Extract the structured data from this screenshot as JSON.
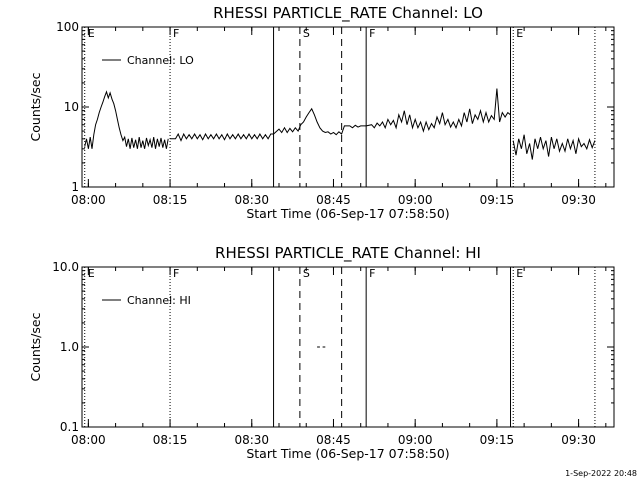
{
  "chart_data": [
    {
      "type": "line",
      "title": "RHESSI PARTICLE_RATE Channel: LO",
      "xlabel": "Start Time (06-Sep-17 07:58:50)",
      "ylabel": "Counts/sec",
      "yscale": "log",
      "ylim": [
        1,
        100
      ],
      "y_ticks": [
        "1",
        "10",
        "100"
      ],
      "xlim": [
        "07:58:50",
        "09:36:30"
      ],
      "x_ticks": [
        "08:00",
        "08:15",
        "08:30",
        "08:45",
        "09:00",
        "09:15",
        "09:30"
      ],
      "legend": {
        "position": "top-left",
        "entries": [
          "Channel: LO"
        ]
      },
      "grid": false,
      "markers": [
        {
          "time": "07:59:20",
          "label": "E",
          "style": "dotted"
        },
        {
          "time": "08:15:00",
          "label": "F",
          "style": "dotted"
        },
        {
          "time": "08:34:00",
          "label": "",
          "style": "solid"
        },
        {
          "time": "08:38:50",
          "label": "S",
          "style": "dashed"
        },
        {
          "time": "08:46:30",
          "label": "",
          "style": "dashed"
        },
        {
          "time": "08:51:00",
          "label": "F",
          "style": "solid"
        },
        {
          "time": "09:17:30",
          "label": "",
          "style": "solid"
        },
        {
          "time": "09:18:00",
          "label": "E",
          "style": "dotted"
        },
        {
          "time": "09:33:00",
          "label": "",
          "style": "dotted"
        }
      ],
      "series": [
        {
          "name": "Channel: LO",
          "segments": [
            {
              "x": [
                "07:59:20",
                "07:59:40",
                "08:00:00",
                "08:00:20",
                "08:00:40",
                "08:01:00",
                "08:01:20",
                "08:01:40",
                "08:02:00",
                "08:02:20",
                "08:02:40",
                "08:03:00",
                "08:03:20",
                "08:03:40",
                "08:04:00",
                "08:04:20",
                "08:04:40",
                "08:05:00",
                "08:05:20",
                "08:05:40",
                "08:06:00",
                "08:06:20",
                "08:06:40",
                "08:07:00",
                "08:07:20",
                "08:07:40",
                "08:08:00",
                "08:08:20",
                "08:08:40",
                "08:09:00",
                "08:09:20",
                "08:09:40",
                "08:10:00",
                "08:10:20",
                "08:10:40",
                "08:11:00",
                "08:11:20",
                "08:11:40",
                "08:12:00",
                "08:12:20",
                "08:12:40",
                "08:13:00",
                "08:13:20",
                "08:13:40",
                "08:14:00",
                "08:14:20",
                "08:14:40"
              ],
              "y": [
                3.2,
                4.0,
                3.0,
                4.2,
                3.0,
                4.5,
                6.0,
                7.0,
                8.5,
                10.0,
                11.5,
                13.5,
                15.5,
                13.0,
                15.0,
                12.5,
                11.0,
                9.0,
                7.0,
                5.5,
                4.5,
                3.8,
                4.2,
                3.2,
                4.0,
                3.0,
                4.1,
                3.1,
                3.9,
                3.0,
                4.2,
                3.1,
                3.8,
                3.0,
                4.1,
                3.3,
                3.9,
                3.1,
                4.2,
                3.0,
                4.0,
                3.2,
                4.1,
                3.1,
                3.9,
                3.0,
                4.0
              ]
            },
            {
              "x": [
                "08:15:00",
                "08:16:00",
                "08:16:30",
                "08:17:00",
                "08:17:30",
                "08:18:00",
                "08:18:30",
                "08:19:00",
                "08:19:30",
                "08:20:00",
                "08:20:30",
                "08:21:00",
                "08:21:30",
                "08:22:00",
                "08:22:30",
                "08:23:00",
                "08:23:30",
                "08:24:00",
                "08:24:30",
                "08:25:00",
                "08:25:30",
                "08:26:00",
                "08:26:30",
                "08:27:00",
                "08:27:30",
                "08:28:00",
                "08:28:30",
                "08:29:00",
                "08:29:30",
                "08:30:00",
                "08:30:30",
                "08:31:00",
                "08:31:30",
                "08:32:00",
                "08:32:30",
                "08:33:00",
                "08:33:30",
                "08:34:00"
              ],
              "y": [
                4.0,
                4.0,
                4.6,
                3.8,
                4.6,
                4.0,
                4.5,
                4.0,
                4.6,
                4.0,
                4.5,
                3.9,
                4.6,
                4.0,
                4.5,
                4.0,
                4.6,
                4.0,
                4.5,
                3.9,
                4.6,
                4.0,
                4.5,
                4.0,
                4.6,
                4.0,
                4.5,
                4.0,
                4.6,
                4.0,
                4.5,
                4.0,
                4.6,
                4.0,
                4.5,
                4.0,
                4.6,
                4.6
              ]
            },
            {
              "x": [
                "08:34:00",
                "08:35:00",
                "08:35:30",
                "08:36:00",
                "08:36:30",
                "08:37:00",
                "08:37:30",
                "08:38:00",
                "08:38:30",
                "08:39:00",
                "08:39:30",
                "08:40:00",
                "08:40:30",
                "08:41:00",
                "08:41:30",
                "08:42:00",
                "08:42:30",
                "08:43:00",
                "08:43:30",
                "08:44:00",
                "08:44:30",
                "08:45:00",
                "08:45:30",
                "08:46:00",
                "08:46:30",
                "08:47:00",
                "08:48:00",
                "08:48:30",
                "08:49:00",
                "08:49:30",
                "08:50:00",
                "08:51:00"
              ],
              "y": [
                4.6,
                5.3,
                4.8,
                5.5,
                4.8,
                5.4,
                4.9,
                5.5,
                5.0,
                6.0,
                6.5,
                7.5,
                8.5,
                9.5,
                8.0,
                6.5,
                5.5,
                5.0,
                4.8,
                4.9,
                4.6,
                4.8,
                4.5,
                4.9,
                4.6,
                5.8,
                5.8,
                5.5,
                5.9,
                5.6,
                5.8,
                5.8
              ]
            },
            {
              "x": [
                "08:51:00",
                "08:52:00",
                "08:52:30",
                "08:53:00",
                "08:53:30",
                "08:54:00",
                "08:54:30",
                "08:55:00",
                "08:55:30",
                "08:56:00",
                "08:56:30",
                "08:57:00",
                "08:57:30",
                "08:58:00",
                "08:58:30",
                "08:59:00",
                "08:59:30",
                "09:00:00",
                "09:00:30",
                "09:01:00",
                "09:01:30",
                "09:02:00",
                "09:02:30",
                "09:03:00",
                "09:03:30",
                "09:04:00",
                "09:04:30",
                "09:05:00",
                "09:05:30",
                "09:06:00",
                "09:06:30",
                "09:07:00",
                "09:07:30",
                "09:08:00",
                "09:08:30",
                "09:09:00",
                "09:09:30",
                "09:10:00",
                "09:10:30",
                "09:11:00",
                "09:11:30",
                "09:12:00",
                "09:12:30",
                "09:13:00",
                "09:13:30",
                "09:14:00",
                "09:14:30",
                "09:15:00",
                "09:15:30",
                "09:16:00",
                "09:16:30",
                "09:17:00",
                "09:17:30"
              ],
              "y": [
                5.8,
                6.0,
                5.5,
                6.3,
                5.8,
                6.5,
                5.5,
                7.0,
                6.0,
                6.8,
                5.5,
                8.0,
                6.5,
                9.0,
                6.0,
                8.0,
                5.5,
                7.0,
                5.5,
                6.5,
                5.0,
                6.5,
                5.2,
                6.2,
                5.5,
                7.5,
                6.2,
                8.5,
                6.0,
                7.0,
                5.6,
                6.5,
                5.5,
                7.0,
                5.8,
                8.5,
                6.5,
                9.5,
                6.2,
                8.0,
                7.0,
                9.0,
                6.5,
                8.5,
                6.5,
                7.8,
                7.0,
                17.0,
                6.5,
                8.5,
                7.5,
                8.5,
                8.0
              ]
            },
            {
              "x": [
                "09:18:00",
                "09:18:30",
                "09:19:00",
                "09:19:30",
                "09:20:00",
                "09:20:30",
                "09:21:00",
                "09:21:30",
                "09:22:00",
                "09:22:30",
                "09:23:00",
                "09:23:30",
                "09:24:00",
                "09:24:30",
                "09:25:00",
                "09:25:30",
                "09:26:00",
                "09:26:30",
                "09:27:00",
                "09:27:30",
                "09:28:00",
                "09:28:30",
                "09:29:00",
                "09:29:30",
                "09:30:00",
                "09:30:30",
                "09:31:00",
                "09:31:30",
                "09:32:00",
                "09:32:30",
                "09:33:00"
              ],
              "y": [
                3.8,
                2.5,
                4.0,
                3.0,
                4.5,
                2.6,
                3.5,
                2.2,
                4.0,
                3.0,
                4.2,
                3.0,
                3.8,
                2.4,
                4.2,
                3.0,
                4.0,
                2.8,
                3.5,
                2.8,
                4.0,
                3.0,
                3.8,
                2.6,
                4.0,
                3.2,
                3.5,
                3.0,
                3.9,
                3.1,
                3.8
              ]
            }
          ]
        }
      ]
    },
    {
      "type": "line",
      "title": "RHESSI PARTICLE_RATE Channel: HI",
      "xlabel": "Start Time (06-Sep-17 07:58:50)",
      "ylabel": "Counts/sec",
      "yscale": "log",
      "ylim": [
        0.1,
        10
      ],
      "y_ticks": [
        "0.1",
        "1.0",
        "10.0"
      ],
      "xlim": [
        "07:58:50",
        "09:36:30"
      ],
      "x_ticks": [
        "08:00",
        "08:15",
        "08:30",
        "08:45",
        "09:00",
        "09:15",
        "09:30"
      ],
      "legend": {
        "position": "top-left",
        "entries": [
          "Channel: HI"
        ]
      },
      "grid": false,
      "markers": [
        {
          "time": "07:59:20",
          "label": "E",
          "style": "dotted"
        },
        {
          "time": "08:15:00",
          "label": "F",
          "style": "dotted"
        },
        {
          "time": "08:34:00",
          "label": "",
          "style": "solid"
        },
        {
          "time": "08:38:50",
          "label": "S",
          "style": "dashed"
        },
        {
          "time": "08:46:30",
          "label": "",
          "style": "dashed"
        },
        {
          "time": "08:51:00",
          "label": "F",
          "style": "solid"
        },
        {
          "time": "09:17:30",
          "label": "",
          "style": "solid"
        },
        {
          "time": "09:18:00",
          "label": "E",
          "style": "dotted"
        },
        {
          "time": "09:33:00",
          "label": "",
          "style": "dotted"
        }
      ],
      "series": [
        {
          "name": "Channel: HI",
          "segments": [
            {
              "x": [
                "08:42:00",
                "08:42:30"
              ],
              "y": [
                1.0,
                1.0
              ]
            },
            {
              "x": [
                "08:43:00",
                "08:43:30"
              ],
              "y": [
                1.0,
                1.0
              ]
            }
          ]
        }
      ]
    }
  ],
  "footer": {
    "timestamp": "1-Sep-2022 20:48"
  }
}
